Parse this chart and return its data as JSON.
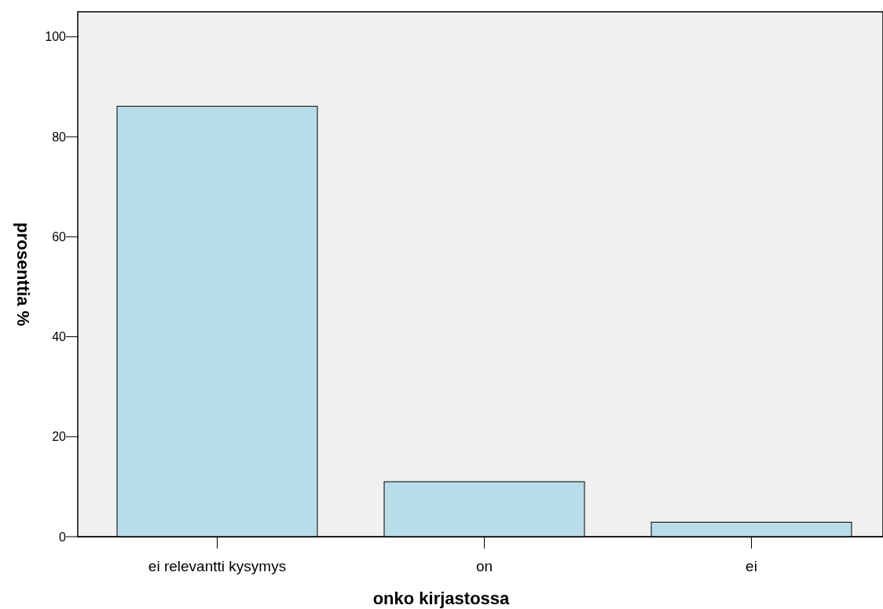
{
  "chart_data": {
    "type": "bar",
    "xlabel": "onko kirjastossa",
    "ylabel": "prosenttia %",
    "categories": [
      "ei relevantti kysymys",
      "on",
      "ei"
    ],
    "values": [
      86.1,
      11.0,
      2.9
    ],
    "color": "#b8dde8",
    "ylim": [
      0,
      105
    ],
    "yticks": [
      0,
      20,
      40,
      60,
      80,
      100
    ],
    "grid": false
  }
}
